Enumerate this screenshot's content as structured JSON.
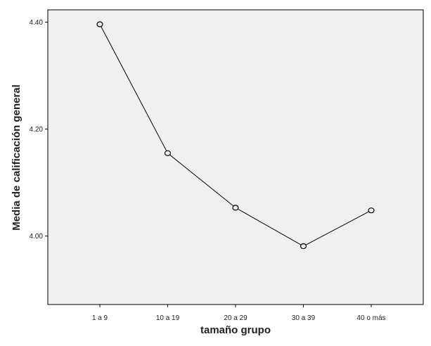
{
  "chart_data": {
    "type": "line",
    "title": "",
    "xlabel": "tamaño grupo",
    "ylabel": "Media de calificación general",
    "categories": [
      "1 a 9",
      "10 a 19",
      "20 a 29",
      "30 a 39",
      "40 o más"
    ],
    "values": [
      4.396,
      4.155,
      4.053,
      3.981,
      4.048
    ],
    "ylim": [
      3.872,
      4.423
    ],
    "yticks": [
      4.0,
      4.2,
      4.4
    ],
    "ytick_labels": [
      "4.00",
      "4.20",
      "4.40"
    ],
    "grid": false,
    "marker": "open-circle",
    "colors": {
      "plot_background": "#f0f0f0",
      "line": "#000000"
    }
  }
}
